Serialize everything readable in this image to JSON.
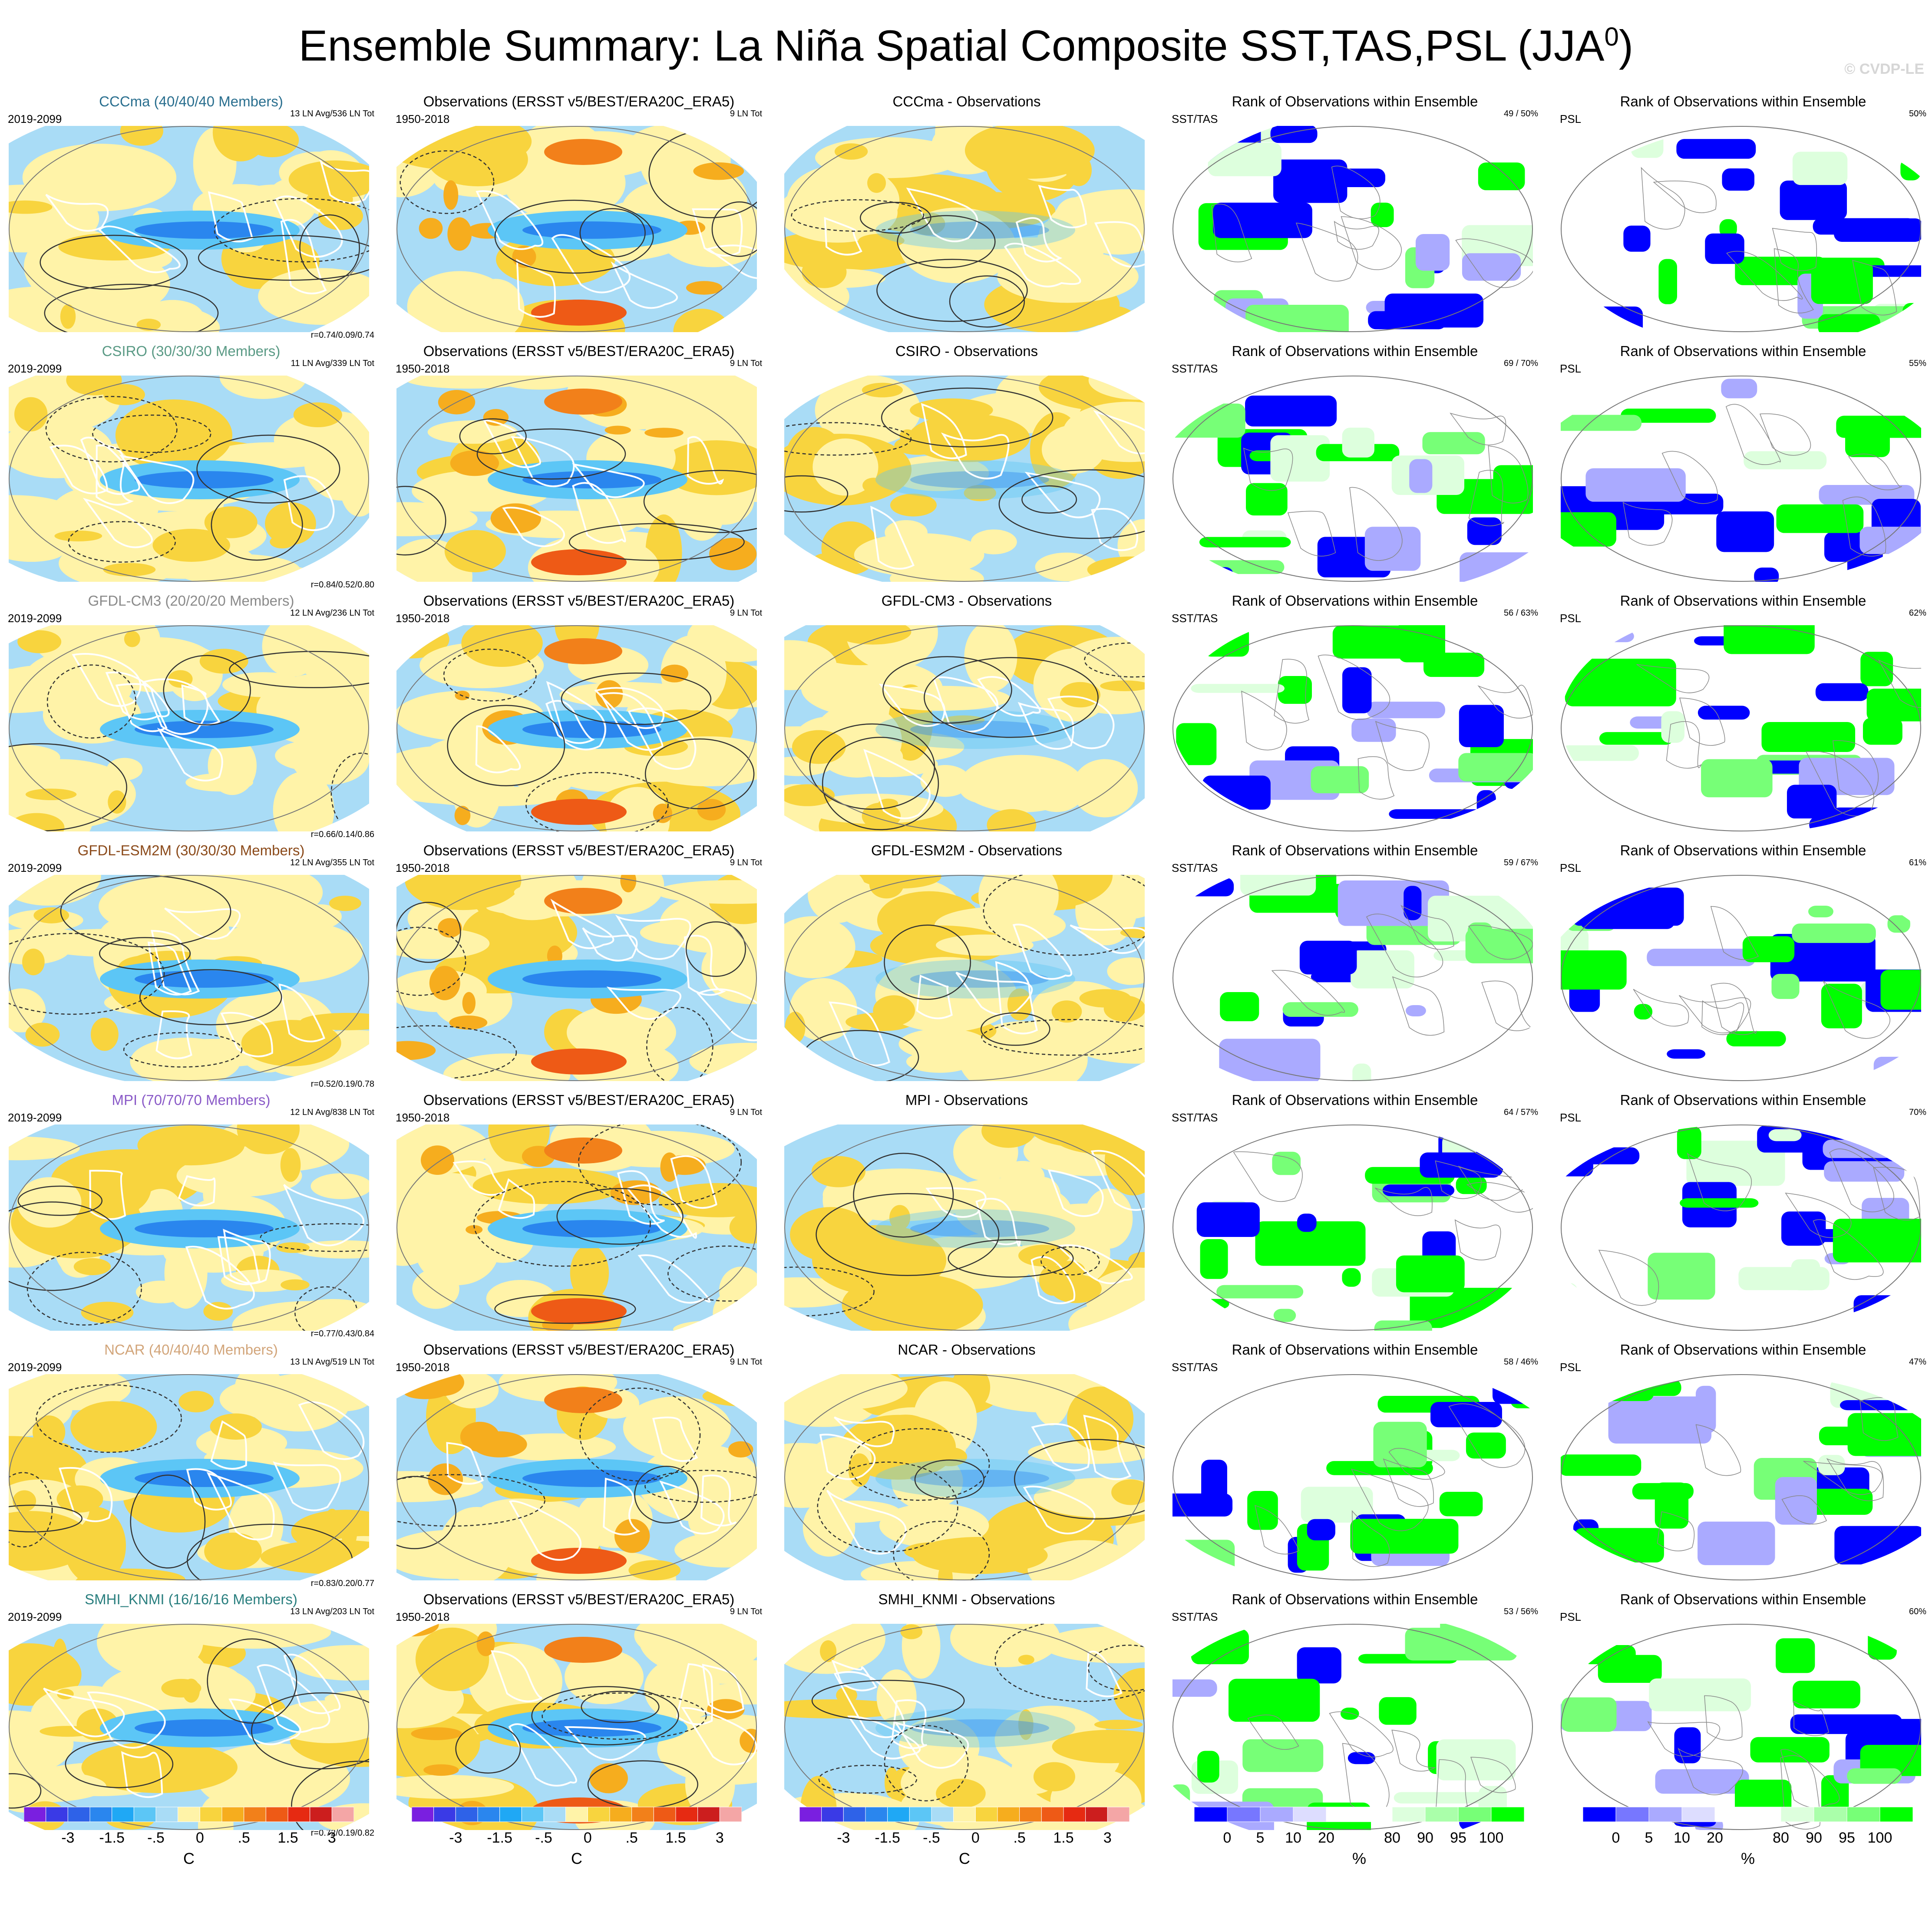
{
  "title": "Ensemble Summary: La Niña Spatial Composite SST,TAS,PSL (JJA",
  "title_superscript": "0",
  "title_end": ")",
  "watermark": "© CVDP-LE",
  "model_period": "2019-2099",
  "obs_title": "Observations (ERSST v5/BEST/ERA20C_ERA5)",
  "obs_period": "1950-2018",
  "obs_count": "9 LN Tot",
  "rank_title": "Rank of Observations within Ensemble",
  "rank_sst_label": "SST/TAS",
  "rank_psl_label": "PSL",
  "rows": [
    {
      "model_title": "CCCma (40/40/40 Members)",
      "title_color": "#2a6f8f",
      "counts": "13 LN Avg/536 LN Tot",
      "corr": "r=0.74/0.09/0.74",
      "diff_title": "CCCma - Observations",
      "sst_rank": "49 /  50%",
      "psl_rank": "50%"
    },
    {
      "model_title": "CSIRO (30/30/30 Members)",
      "title_color": "#5a9a85",
      "counts": "11 LN Avg/339 LN Tot",
      "corr": "r=0.84/0.52/0.80",
      "diff_title": "CSIRO - Observations",
      "sst_rank": "69 /  70%",
      "psl_rank": "55%"
    },
    {
      "model_title": "GFDL-CM3 (20/20/20 Members)",
      "title_color": "#8a8a8a",
      "counts": "12 LN Avg/236 LN Tot",
      "corr": "r=0.66/0.14/0.86",
      "diff_title": "GFDL-CM3 - Observations",
      "sst_rank": "56 /  63%",
      "psl_rank": "62%"
    },
    {
      "model_title": "GFDL-ESM2M (30/30/30 Members)",
      "title_color": "#8b4a1a",
      "counts": "12 LN Avg/355 LN Tot",
      "corr": "r=0.52/0.19/0.78",
      "diff_title": "GFDL-ESM2M - Observations",
      "sst_rank": "59 /  67%",
      "psl_rank": "61%"
    },
    {
      "model_title": "MPI (70/70/70 Members)",
      "title_color": "#8a5ac8",
      "counts": "12 LN Avg/838 LN Tot",
      "corr": "r=0.77/0.43/0.84",
      "diff_title": "MPI - Observations",
      "sst_rank": "64 /  57%",
      "psl_rank": "70%"
    },
    {
      "model_title": "NCAR (40/40/40 Members)",
      "title_color": "#d2a57a",
      "counts": "13 LN Avg/519 LN Tot",
      "corr": "r=0.83/0.20/0.77",
      "diff_title": "NCAR - Observations",
      "sst_rank": "58 /  46%",
      "psl_rank": "47%"
    },
    {
      "model_title": "SMHI_KNMI (16/16/16 Members)",
      "title_color": "#2a7f7f",
      "counts": "13 LN Avg/203 LN Tot",
      "corr": "r=0.72/0.19/0.82",
      "diff_title": "SMHI_KNMI - Observations",
      "sst_rank": "53 /  56%",
      "psl_rank": "60%"
    }
  ],
  "colorbar_temp": {
    "colors": [
      "#7a1fe0",
      "#3a3ae6",
      "#2e62e8",
      "#2a86ee",
      "#1fa8f5",
      "#5cc6f6",
      "#a9dcf6",
      "#fff3a8",
      "#f8d43e",
      "#f6ad1e",
      "#f2801a",
      "#ee5a16",
      "#e62a12",
      "#cc1e1e",
      "#f4a6a6"
    ],
    "ticks": [
      "-3",
      "-1.5",
      "-.5",
      "0",
      ".5",
      "1.5",
      "3"
    ],
    "unit": "C"
  },
  "colorbar_rank": {
    "colors": [
      "#0000ff",
      "#7777ff",
      "#aaaaff",
      "#ddddff",
      "#ffffff",
      "#ffffff",
      "#ddffdd",
      "#aaffaa",
      "#77ff77",
      "#00ff00"
    ],
    "ticks": [
      "0",
      "5",
      "10",
      "20",
      "80",
      "90",
      "95",
      "100"
    ],
    "unit": "%"
  }
}
